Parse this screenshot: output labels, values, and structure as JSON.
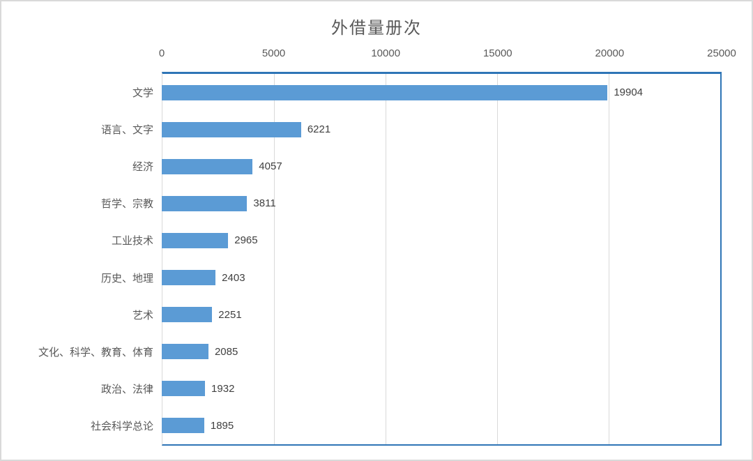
{
  "chart_data": {
    "type": "bar",
    "orientation": "horizontal",
    "title": "外借量册次",
    "categories": [
      "文学",
      "语言、文字",
      "经济",
      "哲学、宗教",
      "工业技术",
      "历史、地理",
      "艺术",
      "文化、科学、教育、体育",
      "政治、法律",
      "社会科学总论"
    ],
    "values": [
      19904,
      6221,
      4057,
      3811,
      2965,
      2403,
      2251,
      2085,
      1932,
      1895
    ],
    "xlabel": "",
    "ylabel": "",
    "axis_ticks": [
      0,
      5000,
      10000,
      15000,
      20000,
      25000
    ],
    "xlim": [
      0,
      25000
    ],
    "grid": true,
    "data_labels": true,
    "legend": "none",
    "colors": {
      "bar": "#5b9bd5",
      "axis_line": "#2e75b6",
      "gridline": "#d9d9d9",
      "title_text": "#595959",
      "tick_text": "#595959",
      "label_text": "#595959",
      "value_text": "#404040"
    }
  }
}
